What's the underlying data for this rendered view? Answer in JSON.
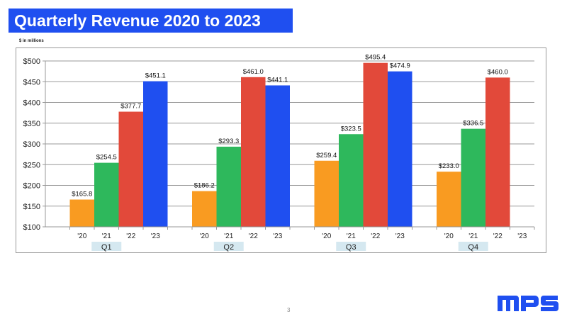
{
  "title": "Quarterly Revenue 2020 to 2023",
  "page_number": "3",
  "logo_text": "MPS",
  "chart_data": {
    "type": "bar",
    "unit_label": "$ in millions",
    "groups": [
      "Q1",
      "Q2",
      "Q3",
      "Q4"
    ],
    "categories": [
      "'20",
      "'21",
      "'22",
      "'23"
    ],
    "series": [
      {
        "values": [
          165.8,
          186.2,
          259.4,
          233.0
        ],
        "labels": [
          "$165.8",
          "$186.2",
          "$259.4",
          "$233.0"
        ]
      },
      {
        "values": [
          254.5,
          293.3,
          323.5,
          336.5
        ],
        "labels": [
          "$254.5",
          "$293.3",
          "$323.5",
          "$336.5"
        ]
      },
      {
        "values": [
          377.7,
          461.0,
          495.4,
          460.0
        ],
        "labels": [
          "$377.7",
          "$461.0",
          "$495.4",
          "$460.0"
        ]
      },
      {
        "values": [
          451.1,
          441.1,
          474.9,
          null
        ],
        "labels": [
          "$451.1",
          "$441.1",
          "$474.9",
          ""
        ]
      }
    ],
    "colors": [
      "#f99b21",
      "#2eb85c",
      "#e2493a",
      "#1f4ff0"
    ],
    "ylim": [
      100,
      500
    ],
    "yticks": [
      100,
      150,
      200,
      250,
      300,
      350,
      400,
      450,
      500
    ],
    "ytick_labels": [
      "$100",
      "$150",
      "$200",
      "$250",
      "$300",
      "$350",
      "$400",
      "$450",
      "$500"
    ],
    "grid": true,
    "group_label_bg": "#d5e8f0"
  }
}
